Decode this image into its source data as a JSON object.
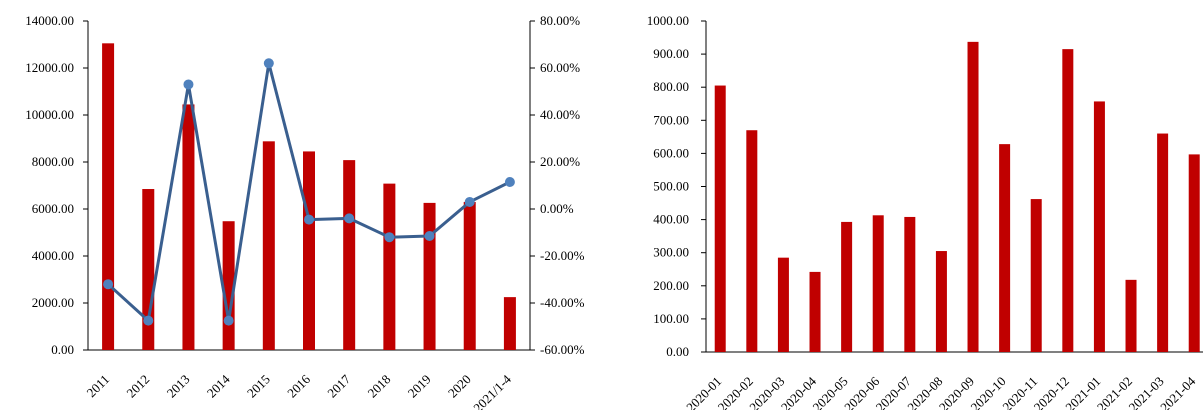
{
  "chart_data": [
    {
      "type": "bar+line",
      "title": "",
      "categories": [
        "2011",
        "2012",
        "2013",
        "2014",
        "2015",
        "2016",
        "2017",
        "2018",
        "2019",
        "2020",
        "2021/1-4"
      ],
      "series": [
        {
          "type": "bar",
          "axis": "left",
          "color": "#C00000",
          "values": [
            13050,
            6850,
            10450,
            5480,
            8880,
            8450,
            8080,
            7080,
            6260,
            6300,
            2250
          ]
        },
        {
          "type": "line",
          "axis": "right",
          "color": "#3A5F8F",
          "values": [
            -32.0,
            -47.5,
            53.0,
            -47.5,
            62.0,
            -4.5,
            -4.0,
            -12.0,
            -11.5,
            3.0,
            11.5
          ]
        }
      ],
      "left_axis": {
        "min": 0,
        "max": 14000,
        "step": 2000,
        "ticks": [
          "0.00",
          "2000.00",
          "4000.00",
          "6000.00",
          "8000.00",
          "10000.00",
          "12000.00",
          "14000.00"
        ]
      },
      "right_axis": {
        "min": -60,
        "max": 80,
        "step": 20,
        "ticks": [
          "-60.00%",
          "-40.00%",
          "-20.00%",
          "0.00%",
          "20.00%",
          "40.00%",
          "60.00%",
          "80.00%"
        ]
      },
      "grid": false,
      "legend": "none"
    },
    {
      "type": "bar",
      "title": "",
      "categories": [
        "2020-01",
        "2020-02",
        "2020-03",
        "2020-04",
        "2020-05",
        "2020-06",
        "2020-07",
        "2020-08",
        "2020-09",
        "2020-10",
        "2020-11",
        "2020-12",
        "2021-01",
        "2021-02",
        "2021-03",
        "2021-04"
      ],
      "values": [
        805,
        670,
        285,
        242,
        393,
        413,
        408,
        305,
        937,
        628,
        462,
        915,
        757,
        218,
        660,
        597
      ],
      "color": "#C00000",
      "left_axis": {
        "min": 0,
        "max": 1000,
        "step": 100,
        "ticks": [
          "0.00",
          "100.00",
          "200.00",
          "300.00",
          "400.00",
          "500.00",
          "600.00",
          "700.00",
          "800.00",
          "900.00",
          "1000.00"
        ]
      },
      "grid": false,
      "legend": "none"
    }
  ]
}
